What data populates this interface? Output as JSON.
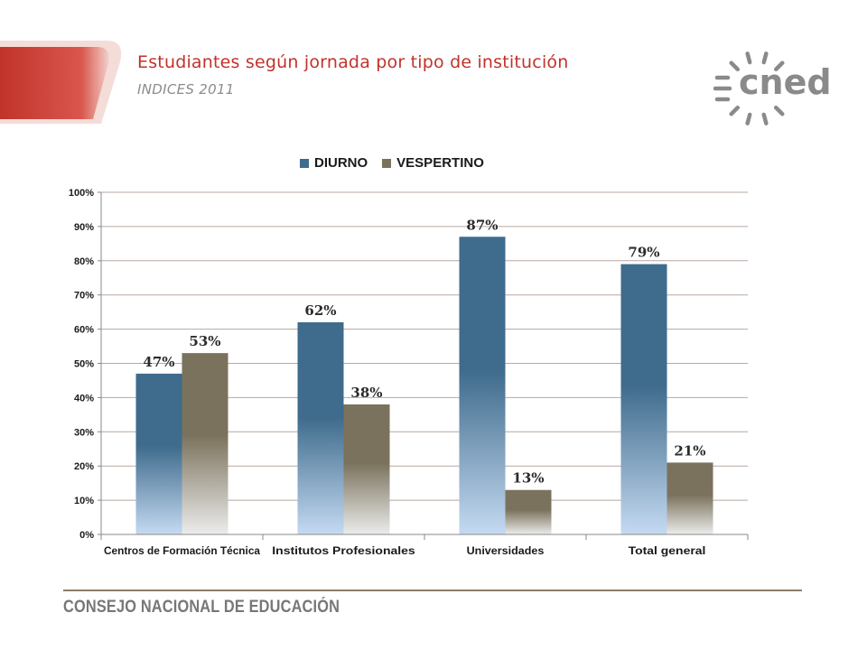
{
  "header": {
    "title": "Estudiantes  según jornada por tipo de institución",
    "subtitle": "INDICES 2011"
  },
  "logo": {
    "text": "cned",
    "icon": "sunburst-icon"
  },
  "footer": {
    "text": "CONSEJO NACIONAL DE EDUCACIÓN"
  },
  "colors": {
    "accent_red": "#c8302a",
    "accent_red_light": "#e8b0a8",
    "title_color": "#c0332b",
    "subtitle_color": "#8c8c8c",
    "logo_gray": "#8a8a8a",
    "footer_line": "#8b7d6b",
    "footer_text": "#777777",
    "diurno": "#3f6b8c",
    "diurno_light": "#c5daf2",
    "vespertino": "#7a725c",
    "vespertino_light": "#ececec",
    "gridline": "#b8a8a0"
  },
  "legend": {
    "items": [
      {
        "label": "DIURNO",
        "color": "#3f6b8c"
      },
      {
        "label": "VESPERTINO",
        "color": "#7a725c"
      }
    ]
  },
  "chart_data": {
    "type": "bar",
    "categories": [
      "Centros de Formación Técnica",
      "Institutos Profesionales",
      "Universidades",
      "Total general"
    ],
    "series": [
      {
        "name": "DIURNO",
        "values": [
          47,
          62,
          87,
          79
        ],
        "labels": [
          "47%",
          "62%",
          "87%",
          "79%"
        ]
      },
      {
        "name": "VESPERTINO",
        "values": [
          53,
          38,
          13,
          21
        ],
        "labels": [
          "53%",
          "38%",
          "13%",
          "21%"
        ]
      }
    ],
    "ylim": [
      0,
      100
    ],
    "yticks": [
      "0%",
      "10%",
      "20%",
      "30%",
      "40%",
      "50%",
      "60%",
      "70%",
      "80%",
      "90%",
      "100%"
    ],
    "grid": true,
    "legend_position": "top"
  }
}
